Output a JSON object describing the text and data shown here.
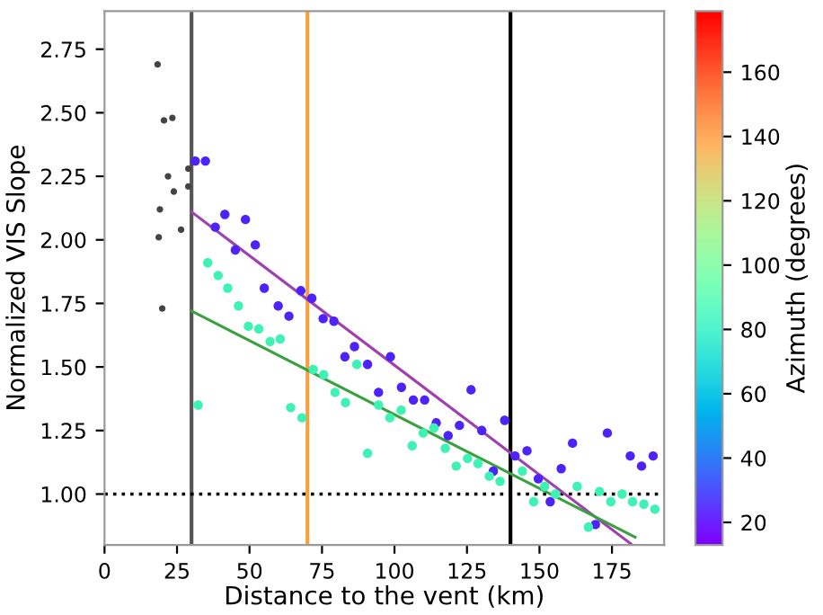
{
  "chart_data": {
    "type": "scatter",
    "xlabel": "Distance to the vent (km)",
    "ylabel": "Normalized VIS Slope",
    "clabel": "Azimuth (degrees)",
    "clim": [
      13,
      179
    ],
    "cticks": [
      20,
      40,
      60,
      80,
      100,
      120,
      140,
      160
    ],
    "xlim": [
      0,
      193
    ],
    "xticks": [
      0,
      25,
      50,
      75,
      100,
      125,
      150,
      175
    ],
    "ylim": [
      0.8,
      2.9
    ],
    "yticks": [
      {
        "value": 1,
        "label": "1.00"
      },
      {
        "value": 1.25,
        "label": "1.25"
      },
      {
        "value": 1.5,
        "label": "1.50"
      },
      {
        "value": 1.75,
        "label": "1.75"
      },
      {
        "value": 2,
        "label": "2.00"
      },
      {
        "value": 2.25,
        "label": "2.25"
      },
      {
        "value": 2.5,
        "label": "2.50"
      },
      {
        "value": 2.75,
        "label": "2.75"
      }
    ],
    "grid": false,
    "series": [
      {
        "marker": "circle",
        "color": "#444444",
        "x": [
          18.3,
          20.5,
          23.4,
          21.9,
          23.9,
          28.9,
          28.9,
          19.1,
          26.4,
          18.7,
          19.9
        ],
        "values": [
          2.69,
          2.47,
          2.48,
          2.25,
          2.19,
          2.28,
          2.21,
          2.12,
          2.04,
          2.01,
          1.73
        ]
      },
      {
        "marker": "circle",
        "color": "#4d23f8",
        "x": [
          31.3,
          34.8,
          38.2,
          41.5,
          45.1,
          48.6,
          52.0,
          55.1,
          59.9,
          63.6,
          67.7,
          71.5,
          75.4,
          79.1,
          82.9,
          86.2,
          90.7,
          98.6,
          94.5,
          102.4,
          106.5,
          110.4,
          114.4,
          118.5,
          122.4,
          126.4,
          130.1,
          134.1,
          138.0,
          141.6,
          145.7,
          149.6,
          153.7,
          157.5,
          161.4,
          169.3,
          173.4,
          181.3,
          185.2,
          189.2
        ],
        "values": [
          2.31,
          2.31,
          2.05,
          2.1,
          1.96,
          2.08,
          1.98,
          1.81,
          1.74,
          1.7,
          1.8,
          1.77,
          1.69,
          1.68,
          1.54,
          1.58,
          1.51,
          1.54,
          1.4,
          1.42,
          1.37,
          1.37,
          1.28,
          1.23,
          1.27,
          1.41,
          1.25,
          1.09,
          1.29,
          1.15,
          1.17,
          1.06,
          0.97,
          1.1,
          1.2,
          0.88,
          1.24,
          1.15,
          1.11,
          1.15
        ]
      },
      {
        "marker": "circle",
        "color": "#3ef2b4",
        "x": [
          32.3,
          35.6,
          39.2,
          42.5,
          46.2,
          49.6,
          53.2,
          57.1,
          60.6,
          64.2,
          68.1,
          72.0,
          75.6,
          79.5,
          83.1,
          87.0,
          90.7,
          94.5,
          98.4,
          102.3,
          106.1,
          109.9,
          113.6,
          117.5,
          121.3,
          125.2,
          128.8,
          132.7,
          136.4,
          144.1,
          148.0,
          151.8,
          155.5,
          163.0,
          166.9,
          170.7,
          174.6,
          178.5,
          182.1,
          186.0,
          189.8
        ],
        "values": [
          1.35,
          1.91,
          1.86,
          1.81,
          1.74,
          1.66,
          1.65,
          1.6,
          1.61,
          1.34,
          1.3,
          1.49,
          1.47,
          1.4,
          1.36,
          1.51,
          1.16,
          1.35,
          1.3,
          1.33,
          1.19,
          1.24,
          1.26,
          1.18,
          1.11,
          1.14,
          1.12,
          1.07,
          1.05,
          1.09,
          0.97,
          1.03,
          1.0,
          1.03,
          0.87,
          1.01,
          0.97,
          1.0,
          0.97,
          0.96,
          0.94
        ]
      },
      {
        "type": "line",
        "color": "#a040b0",
        "x": [
          30,
          182
        ],
        "values": [
          2.11,
          0.8
        ]
      },
      {
        "type": "line",
        "color": "#3aa040",
        "x": [
          30,
          183
        ],
        "values": [
          1.72,
          0.83
        ]
      }
    ],
    "ref_lines": [
      {
        "axis": "x",
        "value": 30,
        "color": "#555555"
      },
      {
        "axis": "x",
        "value": 70,
        "color": "#f5a040"
      },
      {
        "axis": "x",
        "value": 140,
        "color": "#000000"
      },
      {
        "axis": "y",
        "value": 1,
        "color": "#000000",
        "line_style": "dotted"
      }
    ]
  }
}
